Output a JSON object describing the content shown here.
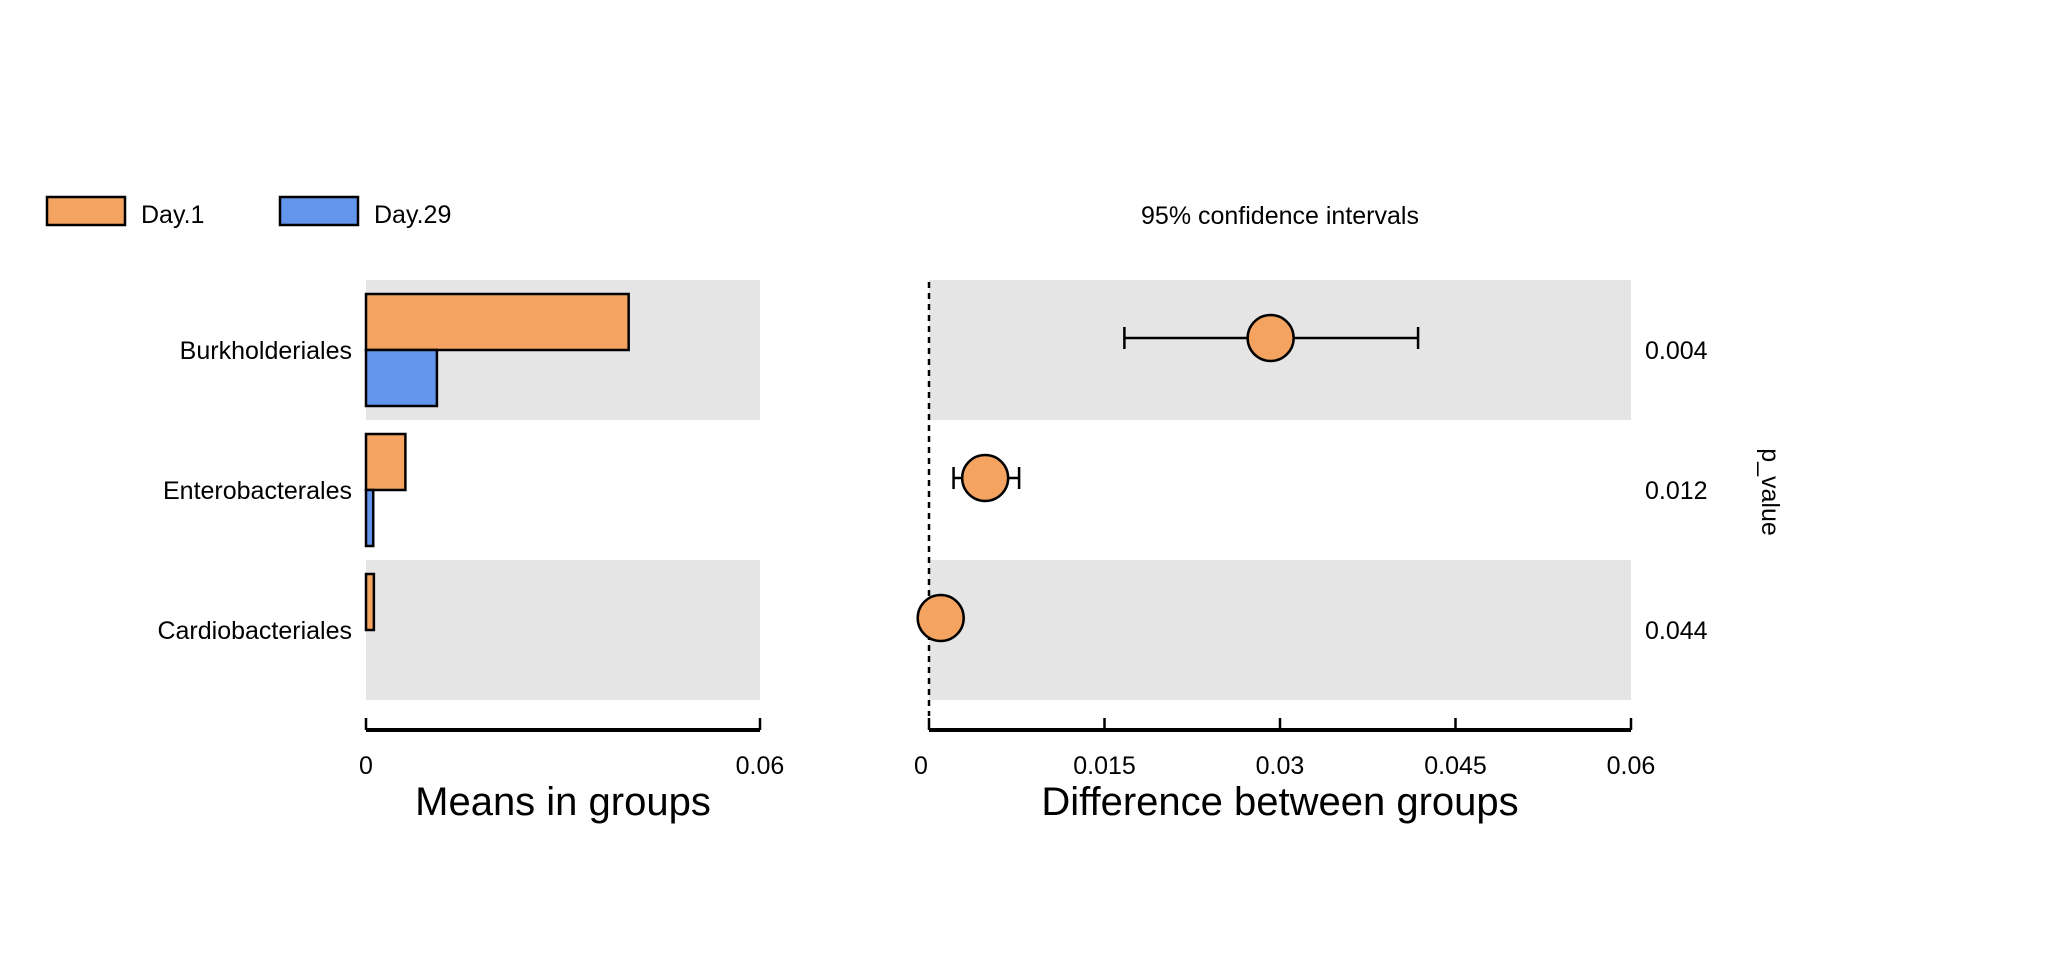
{
  "chart_data": {
    "type": "bar",
    "legend": [
      {
        "name": "Day.1",
        "color": "#F4A460"
      },
      {
        "name": "Day.29",
        "color": "#6495ED"
      }
    ],
    "categories": [
      "Burkholderiales",
      "Enterobacterales",
      "Cardiobacteriales"
    ],
    "left_panel": {
      "xlabel": "Means in groups",
      "xlim": [
        0,
        0.06
      ],
      "ticks": [
        "0",
        "0.06"
      ],
      "series": [
        {
          "name": "Day.1",
          "values": [
            0.04,
            0.006,
            0.0012
          ]
        },
        {
          "name": "Day.29",
          "values": [
            0.0108,
            0.0011,
            0.0
          ]
        }
      ]
    },
    "right_panel": {
      "type": "scatter",
      "title": "95% confidence intervals",
      "xlabel": "Difference between groups",
      "xlim": [
        0,
        0.06
      ],
      "ticks": [
        "0",
        "0.015",
        "0.03",
        "0.045",
        "0.06"
      ],
      "estimates": [
        0.0292,
        0.0048,
        0.001
      ],
      "ci_low": [
        0.0167,
        0.0021,
        0.0
      ],
      "ci_high": [
        0.0418,
        0.0077,
        0.0027
      ],
      "point_color": "#F4A460",
      "zero_line": "dashed"
    },
    "p_value_label": "p_value",
    "p_values": [
      "0.004",
      "0.012",
      "0.044"
    ],
    "band_color": "#E5E5E5"
  }
}
